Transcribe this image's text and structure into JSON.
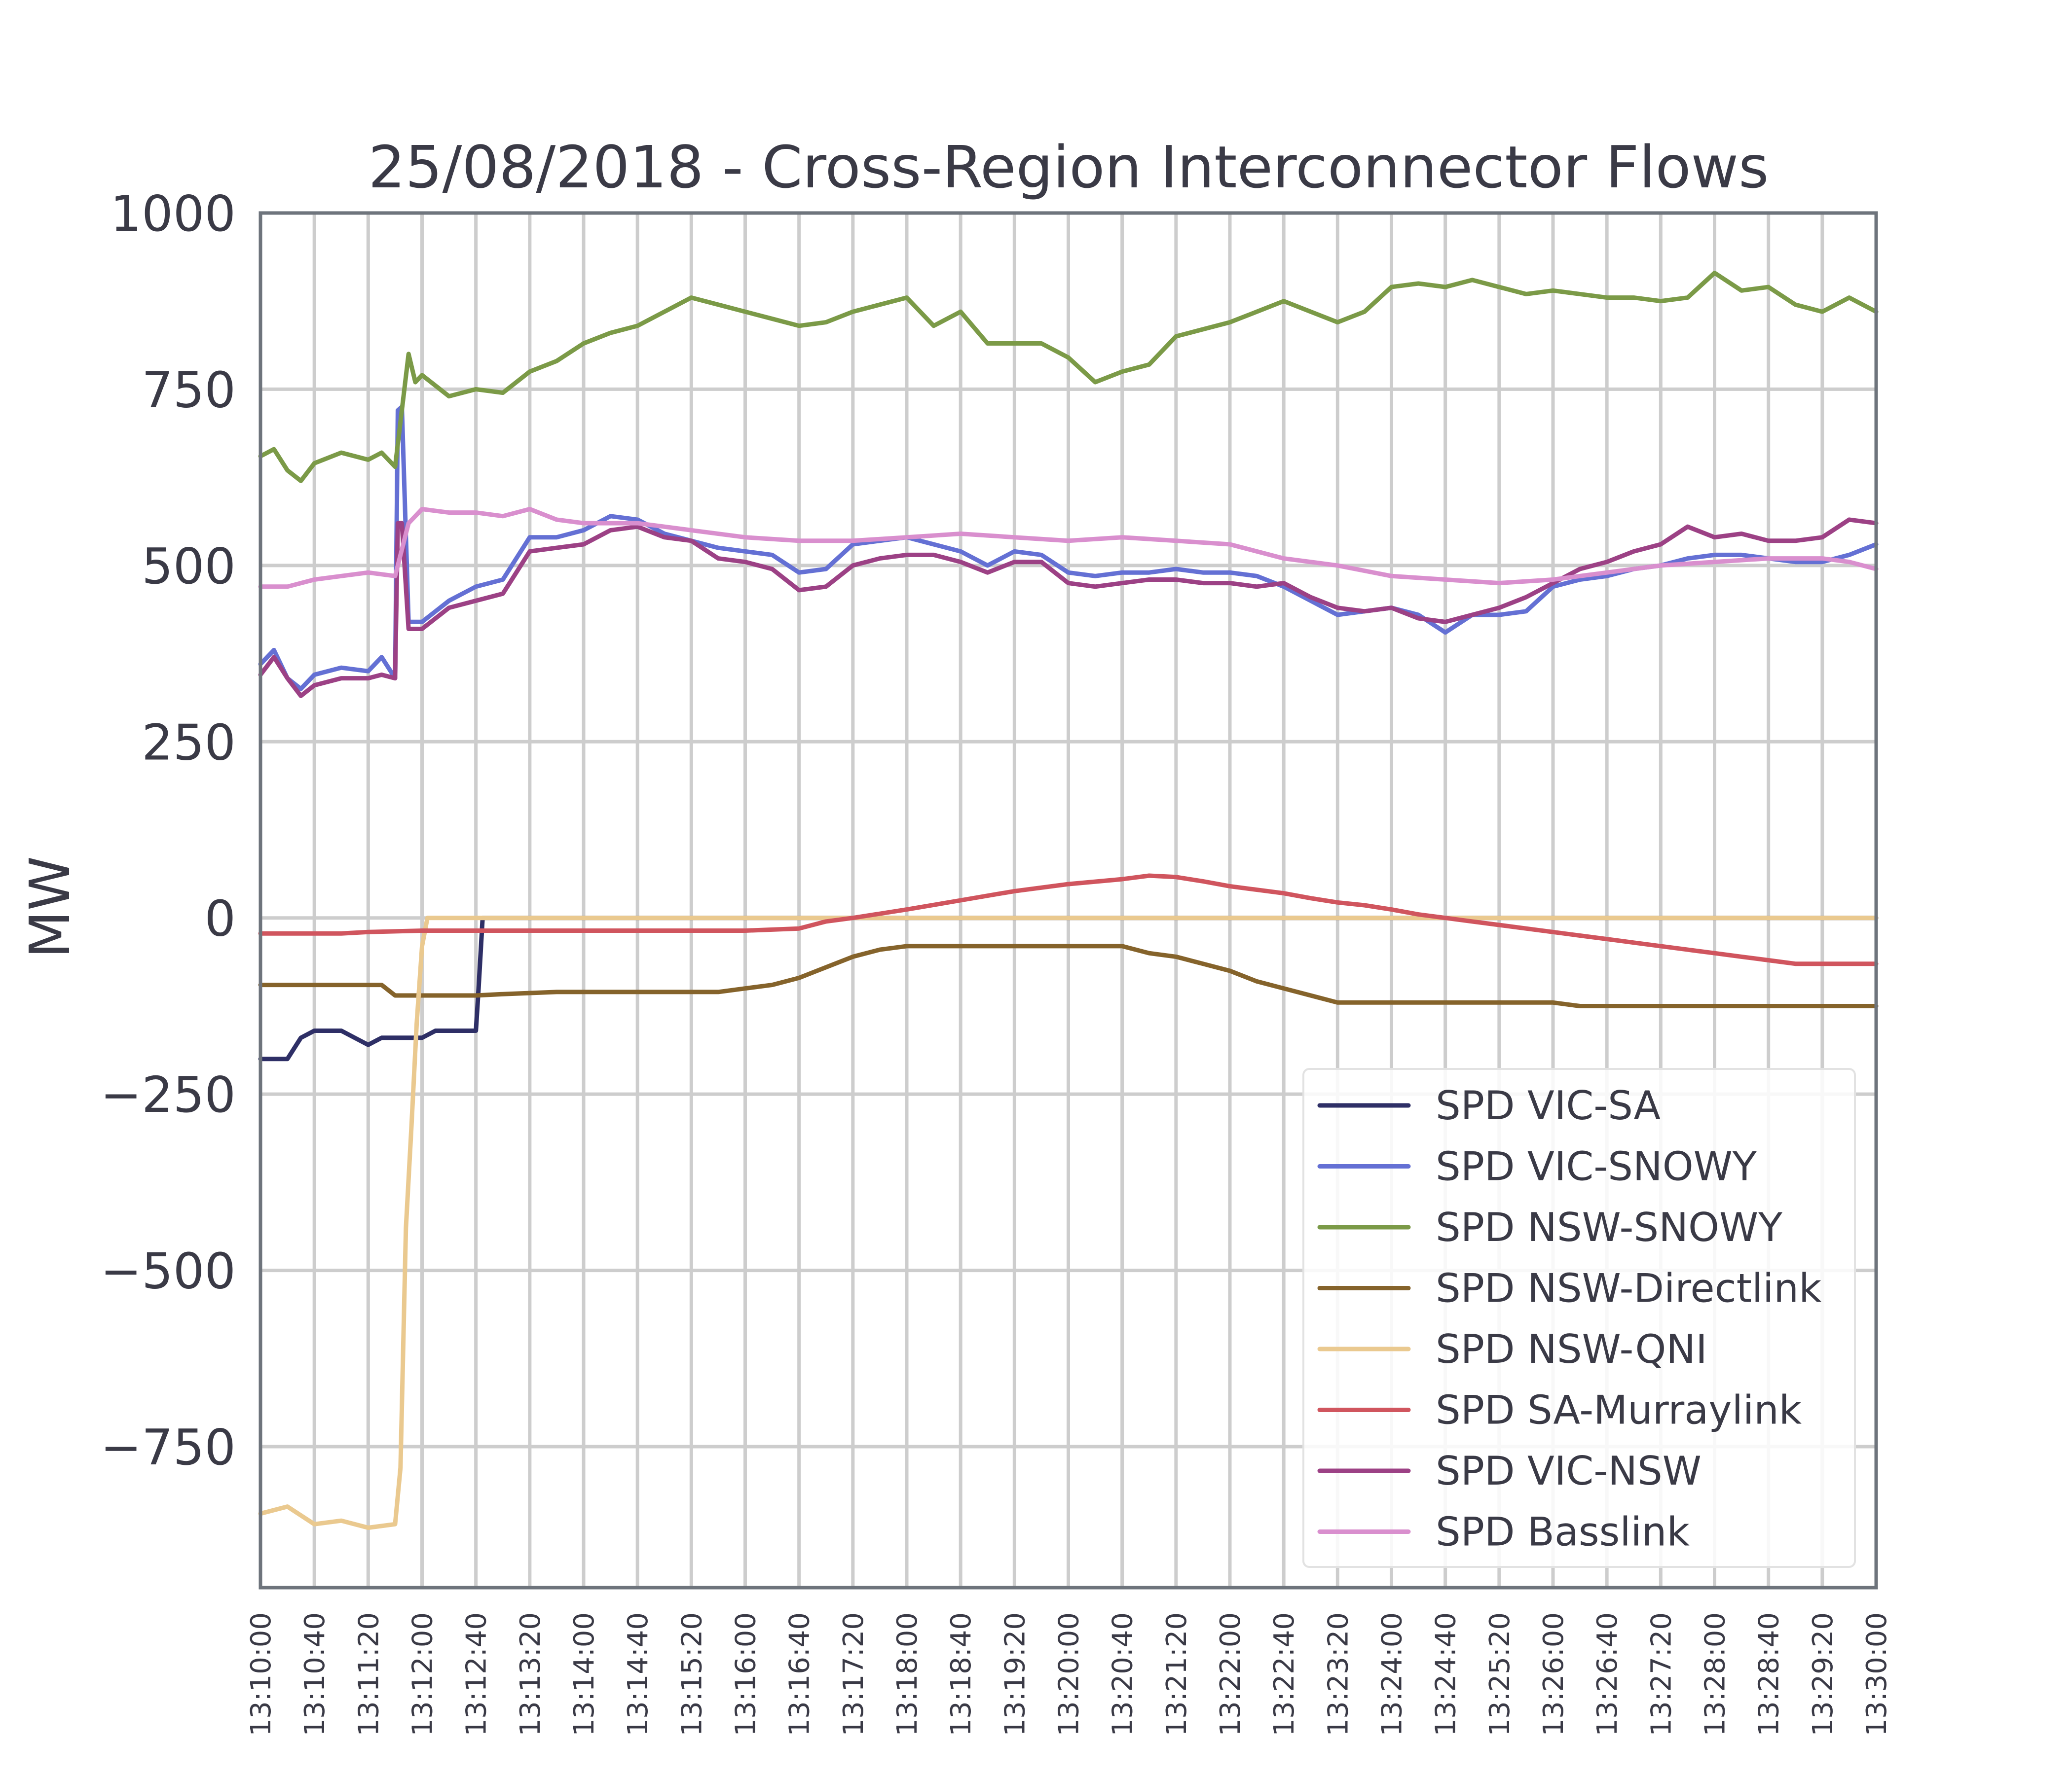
{
  "chart_data": {
    "type": "line",
    "title": "25/08/2018 - Cross-Region Interconnector Flows",
    "ylabel": "MW",
    "xlabel": "",
    "ylim": [
      -950,
      1000
    ],
    "y_ticks": [
      1000,
      750,
      500,
      250,
      0,
      -250,
      -500,
      -750
    ],
    "y_tick_labels": [
      "1000",
      "750",
      "500",
      "250",
      "0",
      "−250",
      "−500",
      "−750"
    ],
    "x_range": [
      "13:10:00",
      "13:30:00"
    ],
    "x_tick_labels": [
      "13:10:00",
      "13:10:40",
      "13:11:20",
      "13:12:00",
      "13:12:40",
      "13:13:20",
      "13:14:00",
      "13:14:40",
      "13:15:20",
      "13:16:00",
      "13:16:40",
      "13:17:20",
      "13:18:00",
      "13:18:40",
      "13:19:20",
      "13:20:00",
      "13:20:40",
      "13:21:20",
      "13:22:00",
      "13:22:40",
      "13:23:20",
      "13:24:00",
      "13:24:40",
      "13:25:20",
      "13:26:00",
      "13:26:40",
      "13:27:20",
      "13:28:00",
      "13:28:40",
      "13:29:20",
      "13:30:00"
    ],
    "grid": true,
    "legend_position": "lower-right",
    "series": [
      {
        "name": "SPD VIC-SA",
        "color": "#2e2f66",
        "x": [
          "13:10:00",
          "13:10:20",
          "13:10:30",
          "13:10:40",
          "13:11:00",
          "13:11:10",
          "13:11:20",
          "13:11:30",
          "13:12:00",
          "13:12:10",
          "13:12:40",
          "13:12:42",
          "13:12:45",
          "13:30:00"
        ],
        "y": [
          -200,
          -200,
          -170,
          -160,
          -160,
          -170,
          -180,
          -170,
          -170,
          -160,
          -160,
          -100,
          0,
          0
        ]
      },
      {
        "name": "SPD VIC-SNOWY",
        "color": "#6470d4",
        "x": [
          "13:10:00",
          "13:10:10",
          "13:10:20",
          "13:10:30",
          "13:10:40",
          "13:11:00",
          "13:11:20",
          "13:11:30",
          "13:11:40",
          "13:11:42",
          "13:11:45",
          "13:11:50",
          "13:12:00",
          "13:12:20",
          "13:12:40",
          "13:13:00",
          "13:13:20",
          "13:13:40",
          "13:14:00",
          "13:14:20",
          "13:14:40",
          "13:15:00",
          "13:15:20",
          "13:15:40",
          "13:16:00",
          "13:16:20",
          "13:16:40",
          "13:17:00",
          "13:17:20",
          "13:17:40",
          "13:18:00",
          "13:18:20",
          "13:18:40",
          "13:19:00",
          "13:19:20",
          "13:19:40",
          "13:20:00",
          "13:20:20",
          "13:20:40",
          "13:21:00",
          "13:21:20",
          "13:21:40",
          "13:22:00",
          "13:22:20",
          "13:22:40",
          "13:23:00",
          "13:23:20",
          "13:23:40",
          "13:24:00",
          "13:24:20",
          "13:24:40",
          "13:25:00",
          "13:25:20",
          "13:25:40",
          "13:26:00",
          "13:26:20",
          "13:26:40",
          "13:27:00",
          "13:27:20",
          "13:27:40",
          "13:28:00",
          "13:28:20",
          "13:28:40",
          "13:29:00",
          "13:29:20",
          "13:29:40",
          "13:30:00"
        ],
        "y": [
          360,
          380,
          340,
          325,
          345,
          355,
          350,
          370,
          340,
          720,
          725,
          420,
          420,
          450,
          470,
          480,
          540,
          540,
          550,
          570,
          565,
          545,
          535,
          525,
          520,
          515,
          490,
          495,
          530,
          535,
          540,
          530,
          520,
          500,
          520,
          515,
          490,
          485,
          490,
          490,
          495,
          490,
          490,
          485,
          470,
          450,
          430,
          435,
          440,
          430,
          405,
          430,
          430,
          435,
          470,
          480,
          485,
          495,
          500,
          510,
          515,
          515,
          510,
          505,
          505,
          515,
          530
        ]
      },
      {
        "name": "SPD NSW-SNOWY",
        "color": "#7b9a47",
        "x": [
          "13:10:00",
          "13:10:10",
          "13:10:20",
          "13:10:30",
          "13:10:40",
          "13:11:00",
          "13:11:20",
          "13:11:30",
          "13:11:40",
          "13:11:50",
          "13:11:55",
          "13:12:00",
          "13:12:20",
          "13:12:40",
          "13:13:00",
          "13:13:20",
          "13:13:40",
          "13:14:00",
          "13:14:20",
          "13:14:40",
          "13:15:00",
          "13:15:20",
          "13:15:40",
          "13:16:00",
          "13:16:20",
          "13:16:40",
          "13:17:00",
          "13:17:20",
          "13:17:40",
          "13:18:00",
          "13:18:20",
          "13:18:40",
          "13:19:00",
          "13:19:20",
          "13:19:40",
          "13:20:00",
          "13:20:20",
          "13:20:40",
          "13:21:00",
          "13:21:20",
          "13:21:40",
          "13:22:00",
          "13:22:20",
          "13:22:40",
          "13:23:00",
          "13:23:20",
          "13:23:40",
          "13:24:00",
          "13:24:20",
          "13:24:40",
          "13:25:00",
          "13:25:20",
          "13:25:40",
          "13:26:00",
          "13:26:20",
          "13:26:40",
          "13:27:00",
          "13:27:20",
          "13:27:40",
          "13:28:00",
          "13:28:20",
          "13:28:40",
          "13:29:00",
          "13:29:20",
          "13:29:40",
          "13:30:00"
        ],
        "y": [
          655,
          665,
          635,
          620,
          645,
          660,
          650,
          660,
          640,
          800,
          760,
          770,
          740,
          750,
          745,
          775,
          790,
          815,
          830,
          840,
          860,
          880,
          870,
          860,
          850,
          840,
          845,
          860,
          870,
          880,
          840,
          860,
          815,
          815,
          815,
          795,
          760,
          775,
          785,
          825,
          835,
          845,
          860,
          875,
          860,
          845,
          860,
          895,
          900,
          895,
          905,
          895,
          885,
          890,
          885,
          880,
          880,
          875,
          880,
          915,
          890,
          895,
          870,
          860,
          880,
          860
        ]
      },
      {
        "name": "SPD NSW-Directlink",
        "color": "#85632b",
        "x": [
          "13:10:00",
          "13:11:30",
          "13:11:40",
          "13:12:00",
          "13:12:40",
          "13:13:00",
          "13:13:40",
          "13:14:00",
          "13:15:00",
          "13:15:40",
          "13:16:00",
          "13:16:20",
          "13:16:40",
          "13:17:00",
          "13:17:20",
          "13:17:40",
          "13:18:00",
          "13:18:40",
          "13:19:20",
          "13:20:00",
          "13:20:40",
          "13:21:00",
          "13:21:20",
          "13:21:40",
          "13:22:00",
          "13:22:20",
          "13:22:40",
          "13:23:00",
          "13:23:20",
          "13:24:00",
          "13:25:00",
          "13:26:00",
          "13:26:20",
          "13:27:00",
          "13:28:00",
          "13:29:00",
          "13:30:00"
        ],
        "y": [
          -95,
          -95,
          -110,
          -110,
          -110,
          -108,
          -105,
          -105,
          -105,
          -105,
          -100,
          -95,
          -85,
          -70,
          -55,
          -45,
          -40,
          -40,
          -40,
          -40,
          -40,
          -50,
          -55,
          -65,
          -75,
          -90,
          -100,
          -110,
          -120,
          -120,
          -120,
          -120,
          -125,
          -125,
          -125,
          -125,
          -125
        ]
      },
      {
        "name": "SPD NSW-QNI",
        "color": "#eac98f",
        "x": [
          "13:10:00",
          "13:10:20",
          "13:10:40",
          "13:11:00",
          "13:11:20",
          "13:11:40",
          "13:11:44",
          "13:11:48",
          "13:11:52",
          "13:11:56",
          "13:12:00",
          "13:12:04",
          "13:30:00"
        ],
        "y": [
          -845,
          -835,
          -860,
          -855,
          -865,
          -860,
          -780,
          -440,
          -300,
          -150,
          -40,
          0,
          0
        ]
      },
      {
        "name": "SPD SA-Murraylink",
        "color": "#d0555e",
        "x": [
          "13:10:00",
          "13:11:00",
          "13:11:20",
          "13:12:00",
          "13:13:00",
          "13:14:00",
          "13:15:00",
          "13:15:40",
          "13:16:00",
          "13:16:40",
          "13:17:00",
          "13:17:20",
          "13:18:00",
          "13:18:40",
          "13:19:20",
          "13:20:00",
          "13:20:40",
          "13:21:00",
          "13:21:20",
          "13:21:40",
          "13:22:00",
          "13:22:20",
          "13:22:40",
          "13:23:00",
          "13:23:20",
          "13:23:40",
          "13:24:00",
          "13:24:20",
          "13:24:40",
          "13:25:00",
          "13:25:20",
          "13:25:40",
          "13:26:00",
          "13:26:20",
          "13:26:40",
          "13:27:00",
          "13:27:20",
          "13:27:40",
          "13:28:00",
          "13:28:20",
          "13:28:40",
          "13:29:00",
          "13:29:20",
          "13:29:40",
          "13:30:00"
        ],
        "y": [
          -22,
          -22,
          -20,
          -18,
          -18,
          -18,
          -18,
          -18,
          -18,
          -15,
          -5,
          0,
          12,
          25,
          38,
          48,
          55,
          60,
          58,
          52,
          45,
          40,
          35,
          28,
          22,
          18,
          12,
          5,
          0,
          -5,
          -10,
          -15,
          -20,
          -25,
          -30,
          -35,
          -40,
          -45,
          -50,
          -55,
          -60,
          -65,
          -65,
          -65,
          -65
        ]
      },
      {
        "name": "SPD VIC-NSW",
        "color": "#9c4185",
        "x": [
          "13:10:00",
          "13:10:10",
          "13:10:20",
          "13:10:30",
          "13:10:40",
          "13:11:00",
          "13:11:20",
          "13:11:30",
          "13:11:40",
          "13:11:42",
          "13:11:45",
          "13:11:50",
          "13:12:00",
          "13:12:20",
          "13:12:40",
          "13:13:00",
          "13:13:20",
          "13:13:40",
          "13:14:00",
          "13:14:20",
          "13:14:40",
          "13:15:00",
          "13:15:20",
          "13:15:40",
          "13:16:00",
          "13:16:20",
          "13:16:40",
          "13:17:00",
          "13:17:20",
          "13:17:40",
          "13:18:00",
          "13:18:20",
          "13:18:40",
          "13:19:00",
          "13:19:20",
          "13:19:40",
          "13:20:00",
          "13:20:20",
          "13:20:40",
          "13:21:00",
          "13:21:20",
          "13:21:40",
          "13:22:00",
          "13:22:20",
          "13:22:40",
          "13:23:00",
          "13:23:20",
          "13:23:40",
          "13:24:00",
          "13:24:20",
          "13:24:40",
          "13:25:00",
          "13:25:20",
          "13:25:40",
          "13:26:00",
          "13:26:20",
          "13:26:40",
          "13:27:00",
          "13:27:20",
          "13:27:40",
          "13:28:00",
          "13:28:20",
          "13:28:40",
          "13:29:00",
          "13:29:20",
          "13:29:40",
          "13:30:00"
        ],
        "y": [
          345,
          370,
          340,
          315,
          330,
          340,
          340,
          345,
          340,
          560,
          560,
          410,
          410,
          440,
          450,
          460,
          520,
          525,
          530,
          550,
          555,
          540,
          535,
          510,
          505,
          495,
          465,
          470,
          500,
          510,
          515,
          515,
          505,
          490,
          505,
          505,
          475,
          470,
          475,
          480,
          480,
          475,
          475,
          470,
          475,
          455,
          440,
          435,
          440,
          425,
          420,
          430,
          440,
          455,
          475,
          495,
          505,
          520,
          530,
          555,
          540,
          545,
          535,
          535,
          540,
          565,
          560
        ]
      },
      {
        "name": "SPD Basslink",
        "color": "#d98fce",
        "x": [
          "13:10:00",
          "13:10:20",
          "13:10:40",
          "13:11:00",
          "13:11:20",
          "13:11:40",
          "13:11:50",
          "13:12:00",
          "13:12:20",
          "13:12:40",
          "13:13:00",
          "13:13:20",
          "13:13:40",
          "13:14:00",
          "13:14:40",
          "13:15:20",
          "13:16:00",
          "13:16:40",
          "13:17:20",
          "13:18:00",
          "13:18:40",
          "13:19:20",
          "13:20:00",
          "13:20:40",
          "13:21:20",
          "13:22:00",
          "13:22:40",
          "13:23:20",
          "13:24:00",
          "13:24:40",
          "13:25:20",
          "13:26:00",
          "13:26:40",
          "13:27:20",
          "13:28:00",
          "13:28:40",
          "13:29:20",
          "13:29:40",
          "13:30:00"
        ],
        "y": [
          470,
          470,
          480,
          485,
          490,
          485,
          560,
          580,
          575,
          575,
          570,
          580,
          565,
          560,
          560,
          550,
          540,
          535,
          535,
          540,
          545,
          540,
          535,
          540,
          535,
          530,
          510,
          500,
          485,
          480,
          475,
          480,
          490,
          500,
          505,
          510,
          510,
          505,
          495
        ]
      }
    ]
  }
}
